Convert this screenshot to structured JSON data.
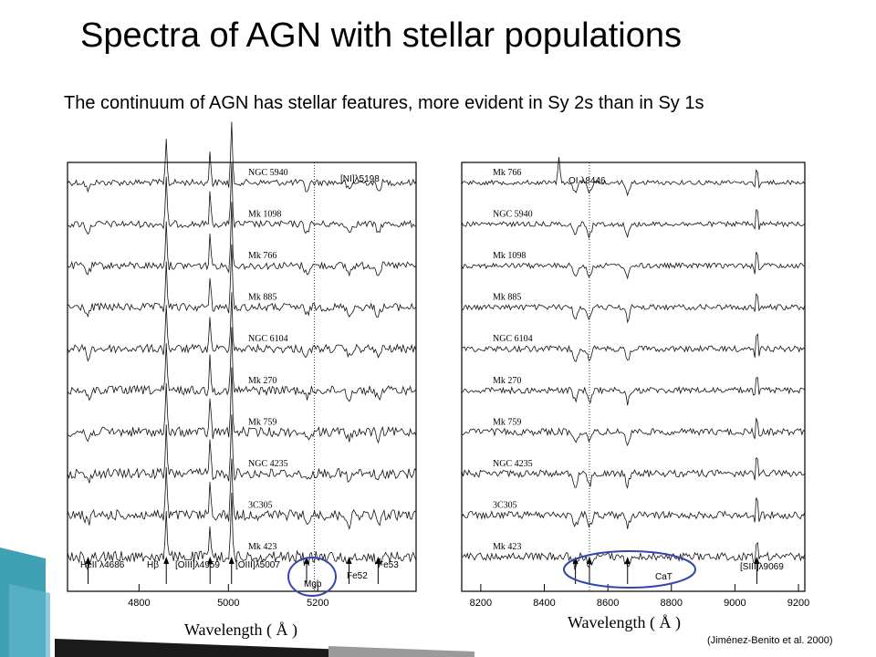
{
  "slide": {
    "title": "Spectra of AGN with stellar populations",
    "subtitle": "The continuum of AGN has stellar features, more evident in Sy 2s than in Sy 1s",
    "credit": "(Jiménez-Benito  et al. 2000)"
  },
  "colors": {
    "highlight": "#3348a8",
    "ribbon_teal": "#1f8fa8",
    "ribbon_dark": "#1a1a1a"
  },
  "chart_data": [
    {
      "type": "line",
      "xlabel": "Wavelength ( Å )",
      "ylabel": "",
      "xlim": [
        4640,
        5420
      ],
      "xticks": [
        4800,
        5000,
        5200
      ],
      "grid": false,
      "series": [
        {
          "name": "NGC 5940"
        },
        {
          "name": "Mk 1098"
        },
        {
          "name": "Mk 766"
        },
        {
          "name": "Mk 885"
        },
        {
          "name": "NGC 6104"
        },
        {
          "name": "Mk 270"
        },
        {
          "name": "Mk 759"
        },
        {
          "name": "NGC 4235"
        },
        {
          "name": "3C305"
        },
        {
          "name": "Mk 423"
        }
      ],
      "line_marks": [
        4686,
        4861,
        4959,
        5007,
        5175,
        5270,
        5335
      ],
      "line_labels": [
        "HeII λ4686",
        "Hβ",
        "[OIII]λ4959",
        "[OIII]λ5007",
        "Mgb",
        "Fe52",
        "Fe53"
      ],
      "top_annotation": {
        "label": "[NI]λ5198",
        "x": 5198
      },
      "highlight": "Mgb"
    },
    {
      "type": "line",
      "xlabel": "Wavelength ( Å )",
      "ylabel": "",
      "xlim": [
        8140,
        9220
      ],
      "xticks": [
        8200,
        8400,
        8600,
        8800,
        9000,
        9200
      ],
      "grid": false,
      "series": [
        {
          "name": "Mk 766"
        },
        {
          "name": "NGC 5940"
        },
        {
          "name": "Mk 1098"
        },
        {
          "name": "Mk 885"
        },
        {
          "name": "NGC 6104"
        },
        {
          "name": "Mk 270"
        },
        {
          "name": "Mk 759"
        },
        {
          "name": "NGC 4235"
        },
        {
          "name": "3C305"
        },
        {
          "name": "Mk 423"
        }
      ],
      "line_marks": [
        8498,
        8542,
        8662,
        9069
      ],
      "line_labels": [
        "CaT",
        "[SIII]λ9069"
      ],
      "top_annotation": {
        "label": "OI λ8446",
        "x": 8446
      },
      "highlight": "CaT"
    }
  ]
}
